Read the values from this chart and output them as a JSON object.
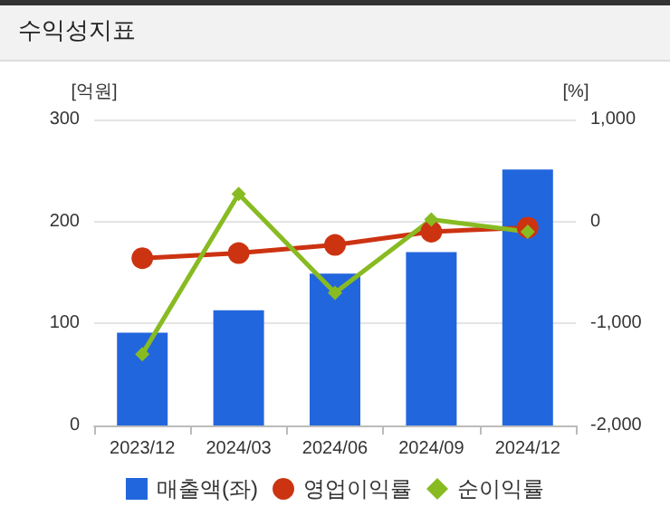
{
  "chart_data": {
    "type": "bar",
    "title": "수익성지표",
    "ylabel": "[억원]",
    "y2label": "[%]",
    "categories": [
      "2023/12",
      "2024/03",
      "2024/06",
      "2024/09",
      "2024/12"
    ],
    "series": [
      {
        "name": "매출액(좌)",
        "color": "#2266dd",
        "values": [
          91,
          113,
          149,
          170,
          251
        ]
      },
      {
        "name": "영업이익률",
        "type": "line",
        "axis": "y2",
        "marker": "circle",
        "color": "#cc3311",
        "values": [
          -360,
          -310,
          -230,
          -100,
          -60
        ]
      },
      {
        "name": "순이익률",
        "type": "line",
        "axis": "y2",
        "marker": "diamond",
        "color": "#88bb22",
        "values": [
          -1300,
          270,
          -700,
          20,
          -100
        ]
      }
    ],
    "ylim": [
      0,
      300
    ],
    "yticks": [
      0,
      100,
      200,
      300
    ],
    "y2lim": [
      -2000,
      1000
    ],
    "y2ticks": [
      {
        "value": -2000,
        "label": "-2,000"
      },
      {
        "value": -1000,
        "label": "-1,000"
      },
      0,
      {
        "value": 1000,
        "label": "1,000"
      }
    ],
    "grid": "y",
    "legend": "bottom"
  }
}
